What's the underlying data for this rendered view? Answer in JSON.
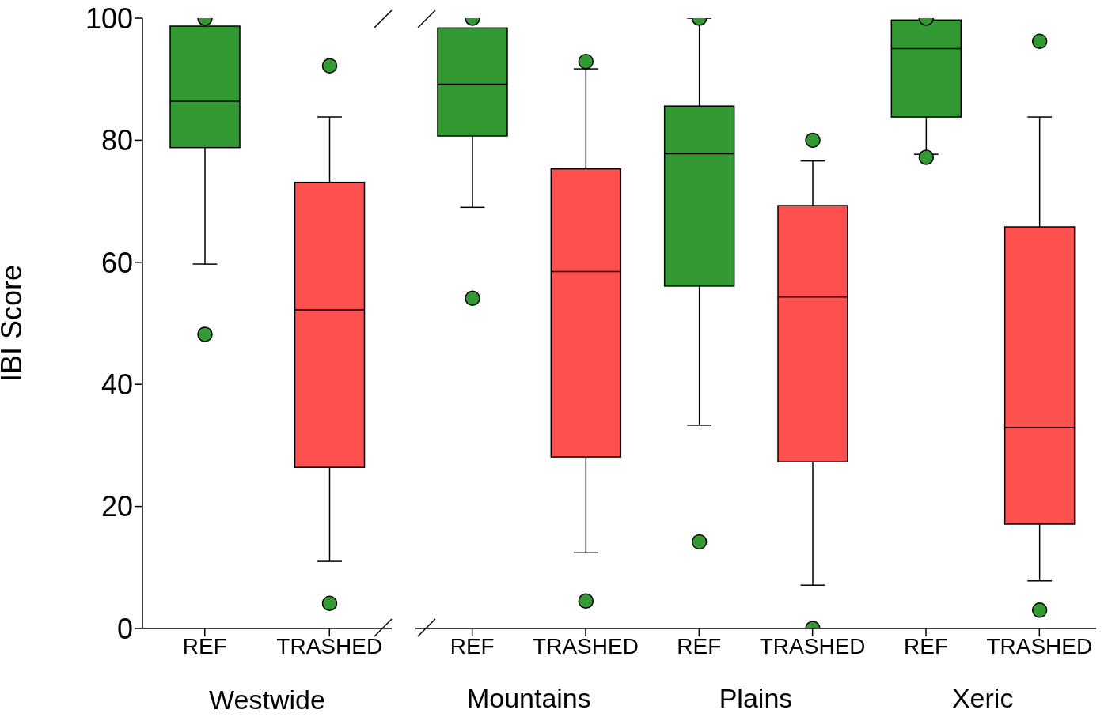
{
  "chart_data": [
    {
      "type": "box",
      "categories": [
        "REF",
        "TRASHED"
      ],
      "xlabel": "Westwide",
      "ylabel": "IBI Score",
      "ylim": [
        0,
        100
      ],
      "yticks": [
        0,
        20,
        40,
        60,
        80,
        100
      ],
      "colors": [
        "#339933",
        "#ff5050"
      ],
      "color": "#339933",
      "boxes": [
        {
          "low": 59.7,
          "q1": 78.8,
          "median": 86.4,
          "q3": 98.7,
          "high": 98.7,
          "outliers": [
            100,
            48.2
          ]
        },
        {
          "low": 11.0,
          "q1": 26.4,
          "median": 52.2,
          "q3": 73.1,
          "high": 83.8,
          "outliers": [
            92.2,
            4.1
          ]
        }
      ]
    },
    {
      "type": "box",
      "categories": [
        "REF",
        "TRASHED",
        "REF",
        "TRASHED",
        "REF",
        "TRASHED"
      ],
      "annotations": [
        "Mountains",
        "Plains",
        "Xeric"
      ],
      "ylim": [
        0,
        100
      ],
      "yticks": [
        0,
        20,
        40,
        60,
        80,
        100
      ],
      "tick_labels": "x",
      "colors": [
        "#339933",
        "#ff5050",
        "#339933",
        "#ff5050",
        "#339933",
        "#ff5050"
      ],
      "color": "#339933",
      "boxes": [
        {
          "low": 69.0,
          "q1": 80.7,
          "median": 89.2,
          "q3": 98.4,
          "high": 98.4,
          "outliers": [
            100,
            54.1
          ]
        },
        {
          "low": 12.4,
          "q1": 28.1,
          "median": 58.5,
          "q3": 75.3,
          "high": 91.7,
          "outliers": [
            92.9,
            4.5
          ]
        },
        {
          "low": 33.3,
          "q1": 56.1,
          "median": 77.8,
          "q3": 85.6,
          "high": 100,
          "outliers": [
            100,
            14.2
          ]
        },
        {
          "low": 7.1,
          "q1": 27.3,
          "median": 54.3,
          "q3": 69.3,
          "high": 76.6,
          "outliers": [
            80.0,
            0
          ]
        },
        {
          "low": 77.7,
          "q1": 83.8,
          "median": 95.0,
          "q3": 99.7,
          "high": 99.7,
          "outliers": [
            100,
            77.2
          ]
        },
        {
          "low": 7.8,
          "q1": 17.1,
          "median": 32.9,
          "q3": 65.8,
          "high": 83.8,
          "outliers": [
            96.2,
            3.0
          ]
        }
      ]
    }
  ]
}
